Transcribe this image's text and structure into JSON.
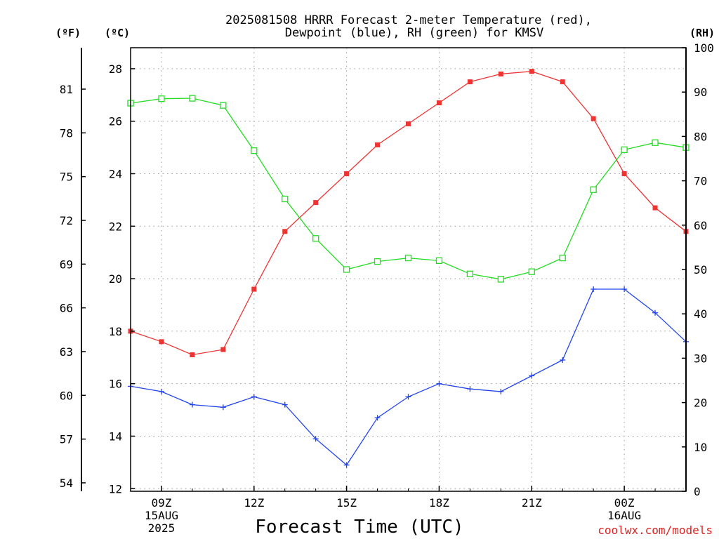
{
  "chart_data": {
    "type": "line",
    "title_lines": [
      "2025081508 HRRR Forecast 2-meter Temperature (red),",
      "Dewpoint (blue), RH (green) for KMSV"
    ],
    "xlabel": "Forecast Time (UTC)",
    "credit": "coolwx.com/models",
    "unit_labels": {
      "f": "(ºF)",
      "c": "(ºC)",
      "rh": "(RH)"
    },
    "x_hours": [
      8,
      9,
      10,
      11,
      12,
      13,
      14,
      15,
      16,
      17,
      18,
      19,
      20,
      21,
      22,
      23,
      24,
      25,
      26
    ],
    "x_tick_labels": [
      {
        "hour": 9,
        "lines": [
          "09Z",
          "15AUG",
          "2025"
        ]
      },
      {
        "hour": 12,
        "lines": [
          "12Z"
        ]
      },
      {
        "hour": 15,
        "lines": [
          "15Z"
        ]
      },
      {
        "hour": 18,
        "lines": [
          "18Z"
        ]
      },
      {
        "hour": 21,
        "lines": [
          "21Z"
        ]
      },
      {
        "hour": 24,
        "lines": [
          "00Z",
          "16AUG"
        ]
      }
    ],
    "xlim": [
      8,
      26
    ],
    "y_celsius": {
      "lim": [
        11.9,
        28.8
      ],
      "ticks": [
        12,
        14,
        16,
        18,
        20,
        22,
        24,
        26,
        28
      ]
    },
    "y_fahrenheit": {
      "ticks": [
        54,
        57,
        60,
        63,
        66,
        69,
        72,
        75,
        78,
        81
      ]
    },
    "y_rh": {
      "lim": [
        0,
        100
      ],
      "ticks": [
        0,
        10,
        20,
        30,
        40,
        50,
        60,
        70,
        80,
        90,
        100
      ]
    },
    "grid": true,
    "colors": {
      "temperature": "#ee3333",
      "dewpoint": "#2244ee",
      "rh": "#22dd22"
    },
    "series": [
      {
        "key": "temperature",
        "axis": "celsius",
        "marker": "filled-square",
        "values": [
          18.0,
          17.6,
          17.1,
          17.3,
          19.6,
          21.8,
          22.9,
          24.0,
          25.1,
          25.9,
          26.7,
          27.5,
          27.8,
          27.9,
          27.5,
          26.1,
          24.0,
          22.7,
          21.8
        ]
      },
      {
        "key": "dewpoint",
        "axis": "celsius",
        "marker": "plus",
        "values": [
          15.9,
          15.7,
          15.2,
          15.1,
          15.5,
          15.2,
          13.9,
          12.9,
          14.7,
          15.5,
          16.0,
          15.8,
          15.7,
          16.3,
          16.9,
          19.6,
          19.6,
          18.7,
          17.6
        ]
      },
      {
        "key": "rh",
        "axis": "rh",
        "marker": "open-square",
        "values": [
          87.5,
          88.5,
          88.6,
          87.0,
          76.8,
          65.9,
          57.0,
          50.0,
          51.8,
          52.6,
          52.0,
          49.0,
          47.8,
          49.5,
          52.6,
          68.0,
          77.0,
          78.6,
          77.5
        ]
      }
    ]
  }
}
